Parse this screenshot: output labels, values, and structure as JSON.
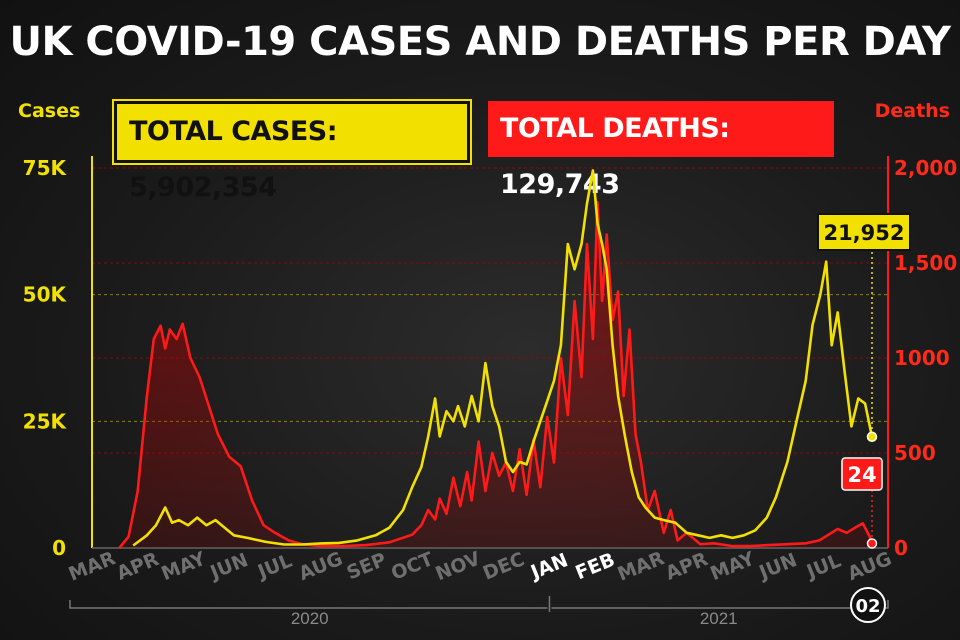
{
  "title": "UK COVID-19 CASES AND DEATHS PER DAY",
  "chart_data": {
    "type": "line",
    "title": "UK COVID-19 CASES AND DEATHS PER DAY",
    "y_left_label": "Cases",
    "y_right_label": "Deaths",
    "total_cases_label": "TOTAL CASES: 5,902,354",
    "total_deaths_label": "TOTAL DEATHS: 129,743",
    "y_left": {
      "range": [
        0,
        75000
      ],
      "ticks": [
        0,
        25000,
        50000,
        75000
      ],
      "tick_labels": [
        "0",
        "25K",
        "50K",
        "75K"
      ]
    },
    "y_right": {
      "range": [
        0,
        2000
      ],
      "ticks": [
        0,
        500,
        1000,
        1500,
        2000
      ],
      "tick_labels": [
        "0",
        "500",
        "1000",
        "1,500",
        "2,000"
      ]
    },
    "x_range": [
      0,
      17.4
    ],
    "x_months": [
      {
        "label": "MAR",
        "x": 0,
        "highlight": false
      },
      {
        "label": "APR",
        "x": 1,
        "highlight": false
      },
      {
        "label": "MAY",
        "x": 2,
        "highlight": false
      },
      {
        "label": "JUN",
        "x": 3,
        "highlight": false
      },
      {
        "label": "JUL",
        "x": 4,
        "highlight": false
      },
      {
        "label": "AUG",
        "x": 5,
        "highlight": false
      },
      {
        "label": "SEP",
        "x": 6,
        "highlight": false
      },
      {
        "label": "OCT",
        "x": 7,
        "highlight": false
      },
      {
        "label": "NOV",
        "x": 8,
        "highlight": false
      },
      {
        "label": "DEC",
        "x": 9,
        "highlight": false
      },
      {
        "label": "JAN",
        "x": 10,
        "highlight": true
      },
      {
        "label": "FEB",
        "x": 11,
        "highlight": true
      },
      {
        "label": "MAR",
        "x": 12,
        "highlight": false
      },
      {
        "label": "APR",
        "x": 13,
        "highlight": false
      },
      {
        "label": "MAY",
        "x": 14,
        "highlight": false
      },
      {
        "label": "JUN",
        "x": 15,
        "highlight": false
      },
      {
        "label": "JUL",
        "x": 16,
        "highlight": false
      },
      {
        "label": "AUG",
        "x": 17,
        "highlight": false
      }
    ],
    "years": [
      "2020",
      "2021"
    ],
    "latest_date_label": "02",
    "series": [
      {
        "name": "Cases",
        "axis": "left",
        "color": "#f2e100",
        "points": [
          [
            0.9,
            500
          ],
          [
            1.2,
            2500
          ],
          [
            1.4,
            4500
          ],
          [
            1.6,
            8000
          ],
          [
            1.75,
            5000
          ],
          [
            1.9,
            5500
          ],
          [
            2.1,
            4500
          ],
          [
            2.3,
            6000
          ],
          [
            2.5,
            4500
          ],
          [
            2.7,
            5500
          ],
          [
            2.9,
            4000
          ],
          [
            3.1,
            2500
          ],
          [
            3.4,
            2000
          ],
          [
            3.8,
            1200
          ],
          [
            4.2,
            700
          ],
          [
            4.6,
            700
          ],
          [
            5.0,
            900
          ],
          [
            5.4,
            1000
          ],
          [
            5.8,
            1500
          ],
          [
            6.2,
            2500
          ],
          [
            6.5,
            4000
          ],
          [
            6.8,
            7500
          ],
          [
            7.0,
            12000
          ],
          [
            7.2,
            16000
          ],
          [
            7.35,
            22000
          ],
          [
            7.5,
            29500
          ],
          [
            7.6,
            22000
          ],
          [
            7.75,
            27000
          ],
          [
            7.9,
            25000
          ],
          [
            8.0,
            28000
          ],
          [
            8.15,
            24000
          ],
          [
            8.3,
            30000
          ],
          [
            8.45,
            25000
          ],
          [
            8.6,
            36500
          ],
          [
            8.75,
            28000
          ],
          [
            8.9,
            24000
          ],
          [
            9.05,
            17000
          ],
          [
            9.2,
            15000
          ],
          [
            9.35,
            17000
          ],
          [
            9.5,
            16500
          ],
          [
            9.65,
            21000
          ],
          [
            9.8,
            25000
          ],
          [
            9.95,
            29000
          ],
          [
            10.1,
            33000
          ],
          [
            10.25,
            40000
          ],
          [
            10.4,
            60000
          ],
          [
            10.55,
            55000
          ],
          [
            10.7,
            60000
          ],
          [
            10.82,
            68000
          ],
          [
            10.95,
            74500
          ],
          [
            11.05,
            64000
          ],
          [
            11.15,
            60000
          ],
          [
            11.25,
            55000
          ],
          [
            11.38,
            40000
          ],
          [
            11.5,
            30000
          ],
          [
            11.65,
            22000
          ],
          [
            11.8,
            15000
          ],
          [
            11.95,
            10000
          ],
          [
            12.1,
            8000
          ],
          [
            12.3,
            6000
          ],
          [
            12.5,
            5500
          ],
          [
            12.75,
            5000
          ],
          [
            13.0,
            3000
          ],
          [
            13.25,
            2500
          ],
          [
            13.5,
            2000
          ],
          [
            13.75,
            2500
          ],
          [
            14.0,
            2000
          ],
          [
            14.25,
            2500
          ],
          [
            14.5,
            3500
          ],
          [
            14.75,
            6000
          ],
          [
            14.95,
            10000
          ],
          [
            15.2,
            17000
          ],
          [
            15.4,
            25000
          ],
          [
            15.6,
            33000
          ],
          [
            15.75,
            44000
          ],
          [
            15.92,
            50000
          ],
          [
            16.05,
            56500
          ],
          [
            16.17,
            40000
          ],
          [
            16.3,
            46500
          ],
          [
            16.45,
            35000
          ],
          [
            16.6,
            24000
          ],
          [
            16.75,
            29500
          ],
          [
            16.9,
            28500
          ],
          [
            17.05,
            21952
          ]
        ]
      },
      {
        "name": "Deaths",
        "axis": "right",
        "color": "#ff1a1a",
        "points": [
          [
            0.6,
            0
          ],
          [
            0.8,
            60
          ],
          [
            1.0,
            300
          ],
          [
            1.2,
            800
          ],
          [
            1.35,
            1100
          ],
          [
            1.5,
            1170
          ],
          [
            1.6,
            1050
          ],
          [
            1.7,
            1150
          ],
          [
            1.85,
            1100
          ],
          [
            1.98,
            1180
          ],
          [
            2.15,
            1000
          ],
          [
            2.35,
            900
          ],
          [
            2.55,
            750
          ],
          [
            2.75,
            600
          ],
          [
            3.0,
            480
          ],
          [
            3.25,
            430
          ],
          [
            3.5,
            250
          ],
          [
            3.75,
            120
          ],
          [
            4.0,
            80
          ],
          [
            4.3,
            40
          ],
          [
            4.6,
            20
          ],
          [
            5.0,
            10
          ],
          [
            5.5,
            10
          ],
          [
            6.0,
            15
          ],
          [
            6.5,
            30
          ],
          [
            7.0,
            70
          ],
          [
            7.2,
            120
          ],
          [
            7.35,
            200
          ],
          [
            7.5,
            150
          ],
          [
            7.6,
            260
          ],
          [
            7.75,
            180
          ],
          [
            7.9,
            370
          ],
          [
            8.05,
            220
          ],
          [
            8.2,
            400
          ],
          [
            8.3,
            250
          ],
          [
            8.45,
            560
          ],
          [
            8.6,
            300
          ],
          [
            8.75,
            500
          ],
          [
            8.9,
            380
          ],
          [
            9.05,
            450
          ],
          [
            9.2,
            300
          ],
          [
            9.35,
            520
          ],
          [
            9.5,
            280
          ],
          [
            9.65,
            570
          ],
          [
            9.8,
            320
          ],
          [
            9.95,
            690
          ],
          [
            10.1,
            450
          ],
          [
            10.25,
            1000
          ],
          [
            10.4,
            700
          ],
          [
            10.55,
            1300
          ],
          [
            10.7,
            900
          ],
          [
            10.82,
            1600
          ],
          [
            10.95,
            1100
          ],
          [
            11.05,
            1820
          ],
          [
            11.15,
            1300
          ],
          [
            11.25,
            1650
          ],
          [
            11.38,
            1200
          ],
          [
            11.5,
            1350
          ],
          [
            11.62,
            800
          ],
          [
            11.75,
            1150
          ],
          [
            11.88,
            600
          ],
          [
            12.0,
            450
          ],
          [
            12.15,
            200
          ],
          [
            12.3,
            300
          ],
          [
            12.5,
            80
          ],
          [
            12.65,
            200
          ],
          [
            12.8,
            40
          ],
          [
            13.0,
            80
          ],
          [
            13.3,
            20
          ],
          [
            13.6,
            25
          ],
          [
            14.0,
            10
          ],
          [
            14.4,
            10
          ],
          [
            14.8,
            15
          ],
          [
            15.2,
            20
          ],
          [
            15.6,
            25
          ],
          [
            15.9,
            40
          ],
          [
            16.1,
            70
          ],
          [
            16.3,
            100
          ],
          [
            16.5,
            80
          ],
          [
            16.7,
            110
          ],
          [
            16.85,
            130
          ],
          [
            17.0,
            60
          ],
          [
            17.05,
            24
          ]
        ]
      }
    ],
    "annotations": [
      {
        "series": "Cases",
        "x": 17.05,
        "value": 21952,
        "label": "21,952"
      },
      {
        "series": "Deaths",
        "x": 17.05,
        "value": 24,
        "label": "24"
      }
    ],
    "grid": true
  }
}
